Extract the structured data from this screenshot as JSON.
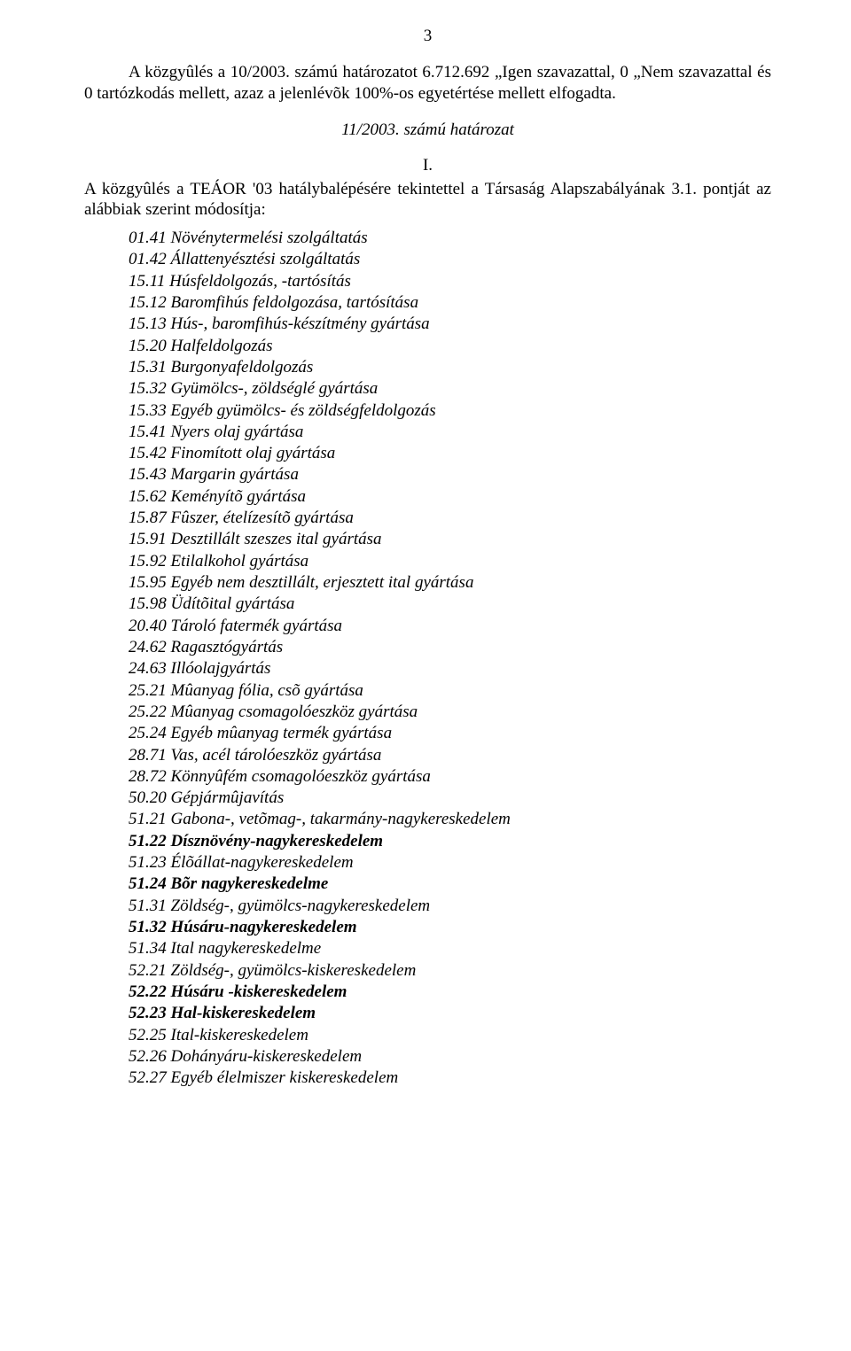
{
  "page": {
    "number": "3"
  },
  "paragraph1": {
    "text_part1": "A közgyûlés a 10/2003. számú határozatot 6.712.692 „Igen szavazattal, 0 „Nem szavazattal és 0 tartózkodás mellett, azaz a jelenlévõk 100%-os egyetértése mellett elfogadta."
  },
  "subtitle": {
    "text": "11/2003. számú határozat"
  },
  "roman": {
    "text": "I."
  },
  "intro": {
    "text": "A közgyûlés a TEÁOR '03 hatálybalépésére tekintettel a Társaság Alapszabályának 3.1. pontját az alábbiak szerint módosítja:"
  },
  "items": [
    {
      "code": "01.41",
      "label": "Növénytermelési szolgáltatás",
      "bold": false
    },
    {
      "code": "01.42",
      "label": "Állattenyésztési szolgáltatás",
      "bold": false
    },
    {
      "code": "15.11",
      "label": "Húsfeldolgozás, -tartósítás",
      "bold": false
    },
    {
      "code": "15.12",
      "label": "Baromfihús feldolgozása, tartósítása",
      "bold": false
    },
    {
      "code": "15.13",
      "label": "Hús-, baromfihús-készítmény gyártása",
      "bold": false
    },
    {
      "code": "15.20",
      "label": "Halfeldolgozás",
      "bold": false
    },
    {
      "code": "15.31",
      "label": "Burgonyafeldolgozás",
      "bold": false
    },
    {
      "code": "15.32",
      "label": "Gyümölcs-, zöldséglé gyártása",
      "bold": false
    },
    {
      "code": "15.33",
      "label": "Egyéb gyümölcs- és zöldségfeldolgozás",
      "bold": false
    },
    {
      "code": "15.41",
      "label": "Nyers olaj gyártása",
      "bold": false
    },
    {
      "code": "15.42",
      "label": "Finomított olaj gyártása",
      "bold": false
    },
    {
      "code": "15.43",
      "label": "Margarin gyártása",
      "bold": false
    },
    {
      "code": "15.62",
      "label": "Keményítõ gyártása",
      "bold": false
    },
    {
      "code": "15.87",
      "label": "Fûszer, ételízesítõ gyártása",
      "bold": false
    },
    {
      "code": "15.91",
      "label": "Desztillált szeszes ital gyártása",
      "bold": false
    },
    {
      "code": "15.92",
      "label": "Etilalkohol gyártása",
      "bold": false
    },
    {
      "code": "15.95",
      "label": "Egyéb nem desztillált, erjesztett ital gyártása",
      "bold": false
    },
    {
      "code": "15.98",
      "label": "Üdítõital gyártása",
      "bold": false
    },
    {
      "code": "20.40",
      "label": "Tároló fatermék gyártása",
      "bold": false
    },
    {
      "code": "24.62",
      "label": "Ragasztógyártás",
      "bold": false
    },
    {
      "code": "24.63",
      "label": "Illóolajgyártás",
      "bold": false
    },
    {
      "code": "25.21",
      "label": "Mûanyag fólia, csõ gyártása",
      "bold": false
    },
    {
      "code": "25.22",
      "label": "Mûanyag csomagolóeszköz gyártása",
      "bold": false
    },
    {
      "code": "25.24",
      "label": "Egyéb mûanyag termék gyártása",
      "bold": false
    },
    {
      "code": "28.71",
      "label": "Vas, acél tárolóeszköz gyártása",
      "bold": false
    },
    {
      "code": "28.72",
      "label": "Könnyûfém csomagolóeszköz gyártása",
      "bold": false
    },
    {
      "code": "50.20",
      "label": "Gépjármûjavítás",
      "bold": false
    },
    {
      "code": "51.21",
      "label": "Gabona-, vetõmag-, takarmány-nagykereskedelem",
      "bold": false
    },
    {
      "code": "51.22",
      "label": "Dísznövény-nagykereskedelem",
      "bold": true
    },
    {
      "code": "51.23",
      "label": "Élõállat-nagykereskedelem",
      "bold": false
    },
    {
      "code": "51.24",
      "label": "Bõr nagykereskedelme",
      "bold": true
    },
    {
      "code": "51.31",
      "label": "Zöldség-, gyümölcs-nagykereskedelem",
      "bold": false
    },
    {
      "code": "51.32",
      "label": "Húsáru-nagykereskedelem",
      "bold": true
    },
    {
      "code": "51.34",
      "label": "Ital nagykereskedelme",
      "bold": false
    },
    {
      "code": "52.21",
      "label": "Zöldség-, gyümölcs-kiskereskedelem",
      "bold": false
    },
    {
      "code": "52.22",
      "label": "Húsáru -kiskereskedelem",
      "bold": true
    },
    {
      "code": "52.23",
      "label": "Hal-kiskereskedelem",
      "bold": true
    },
    {
      "code": "52.25",
      "label": "Ital-kiskereskedelem",
      "bold": false
    },
    {
      "code": "52.26",
      "label": "Dohányáru-kiskereskedelem",
      "bold": false
    },
    {
      "code": "52.27",
      "label": "Egyéb élelmiszer kiskereskedelem",
      "bold": false
    }
  ],
  "styles": {
    "background_color": "#ffffff",
    "text_color": "#000000",
    "font_family": "Times New Roman",
    "base_font_size": 19
  }
}
